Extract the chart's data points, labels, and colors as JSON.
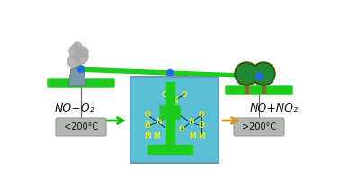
{
  "bg_color": "#ffffff",
  "border_color": "#9966cc",
  "scale_green": "#1ecc1e",
  "mol_box_color": "#5bbfd6",
  "mol_text_yellow": "#eeee00",
  "mol_bond_dark": "#003344",
  "left_label": "<200°C",
  "right_label": ">200°C",
  "left_eq": "NO+O₂",
  "right_eq": "NO+NO₂",
  "arrow_green": "#11bb11",
  "arrow_orange": "#cc9922",
  "label_bg": "#b0b8b0",
  "smoke_color": "#aaaaaa",
  "chimney_color": "#7799aa",
  "tree_green": "#228833",
  "tree_dark": "#335500",
  "trunk_color": "#886633",
  "pivot_blue": "#2266ff"
}
